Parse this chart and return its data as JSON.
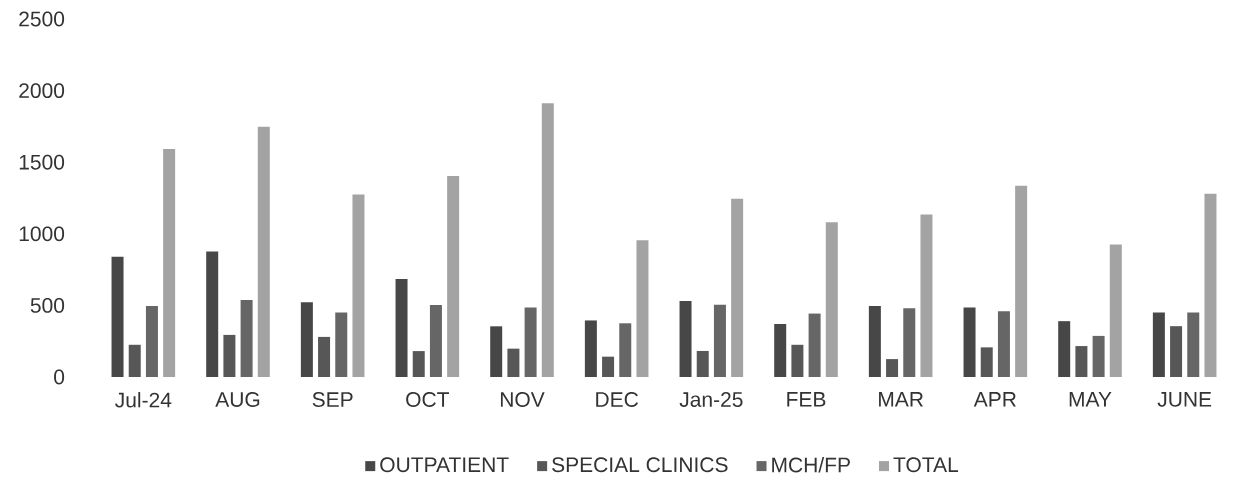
{
  "chart_data": {
    "type": "bar",
    "categories": [
      "Jul-24",
      "AUG",
      "SEP",
      "OCT",
      "NOV",
      "DEC",
      "Jan-25",
      "FEB",
      "MAR",
      "APR",
      "MAY",
      "JUNE"
    ],
    "series": [
      {
        "name": "OUTPATIENT",
        "color": "#474747",
        "values": [
          840,
          876,
          522,
          684,
          354,
          395,
          530,
          370,
          495,
          485,
          390,
          450
        ]
      },
      {
        "name": "SPECIAL CLINICS",
        "color": "#575757",
        "values": [
          225,
          294,
          280,
          181,
          198,
          142,
          182,
          225,
          125,
          207,
          216,
          355
        ]
      },
      {
        "name": "MCH/FP",
        "color": "#666666",
        "values": [
          495,
          538,
          450,
          503,
          486,
          375,
          505,
          443,
          480,
          460,
          287,
          450
        ]
      },
      {
        "name": "TOTAL",
        "color": "#a3a3a3",
        "values": [
          1593,
          1747,
          1275,
          1404,
          1912,
          955,
          1245,
          1080,
          1135,
          1335,
          925,
          1280
        ]
      }
    ],
    "ylim": [
      0,
      2500
    ],
    "yticks": [
      0,
      500,
      1000,
      1500,
      2000,
      2500
    ],
    "legend": "bottom"
  }
}
